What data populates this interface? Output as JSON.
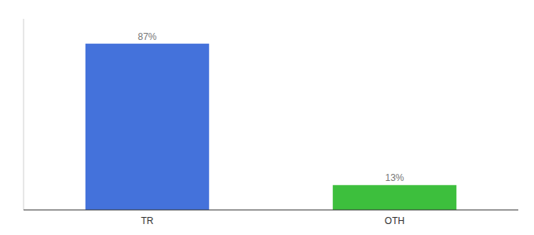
{
  "chart_data": {
    "type": "bar",
    "categories": [
      "TR",
      "OTH"
    ],
    "values": [
      87,
      13
    ],
    "value_labels": [
      "87%",
      "13%"
    ],
    "colors": [
      "#4472db",
      "#3dbf3d"
    ],
    "ylim": [
      0,
      100
    ],
    "data_labels": true,
    "tick_labels": "x"
  }
}
